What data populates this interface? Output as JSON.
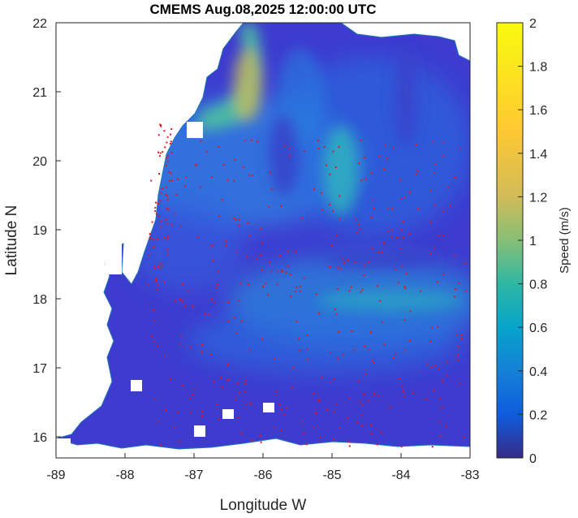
{
  "title": "CMEMS Aug.08,2025 12:00:00 UTC",
  "map": {
    "xlabel": "Longitude W",
    "ylabel": "Latitude N",
    "x_ticks": [
      "-89",
      "-88",
      "-87",
      "-86",
      "-85",
      "-84",
      "-83"
    ],
    "y_ticks": [
      "22",
      "21",
      "20",
      "19",
      "18",
      "17",
      "16"
    ],
    "xlim": [
      -89,
      -83
    ],
    "ylim": [
      15.7,
      22
    ],
    "field": "ocean current speed",
    "land_color": "#ffffff",
    "coastline_color": "#1f77b4",
    "particle_color": "#e8141c"
  },
  "colorbar": {
    "label": "Speed (m/s)",
    "ticks": [
      "2",
      "1.8",
      "1.6",
      "1.4",
      "1.2",
      "1",
      "0.8",
      "0.6",
      "0.4",
      "0.2",
      "0"
    ],
    "range": [
      0,
      2
    ],
    "colormap": "parula"
  }
}
